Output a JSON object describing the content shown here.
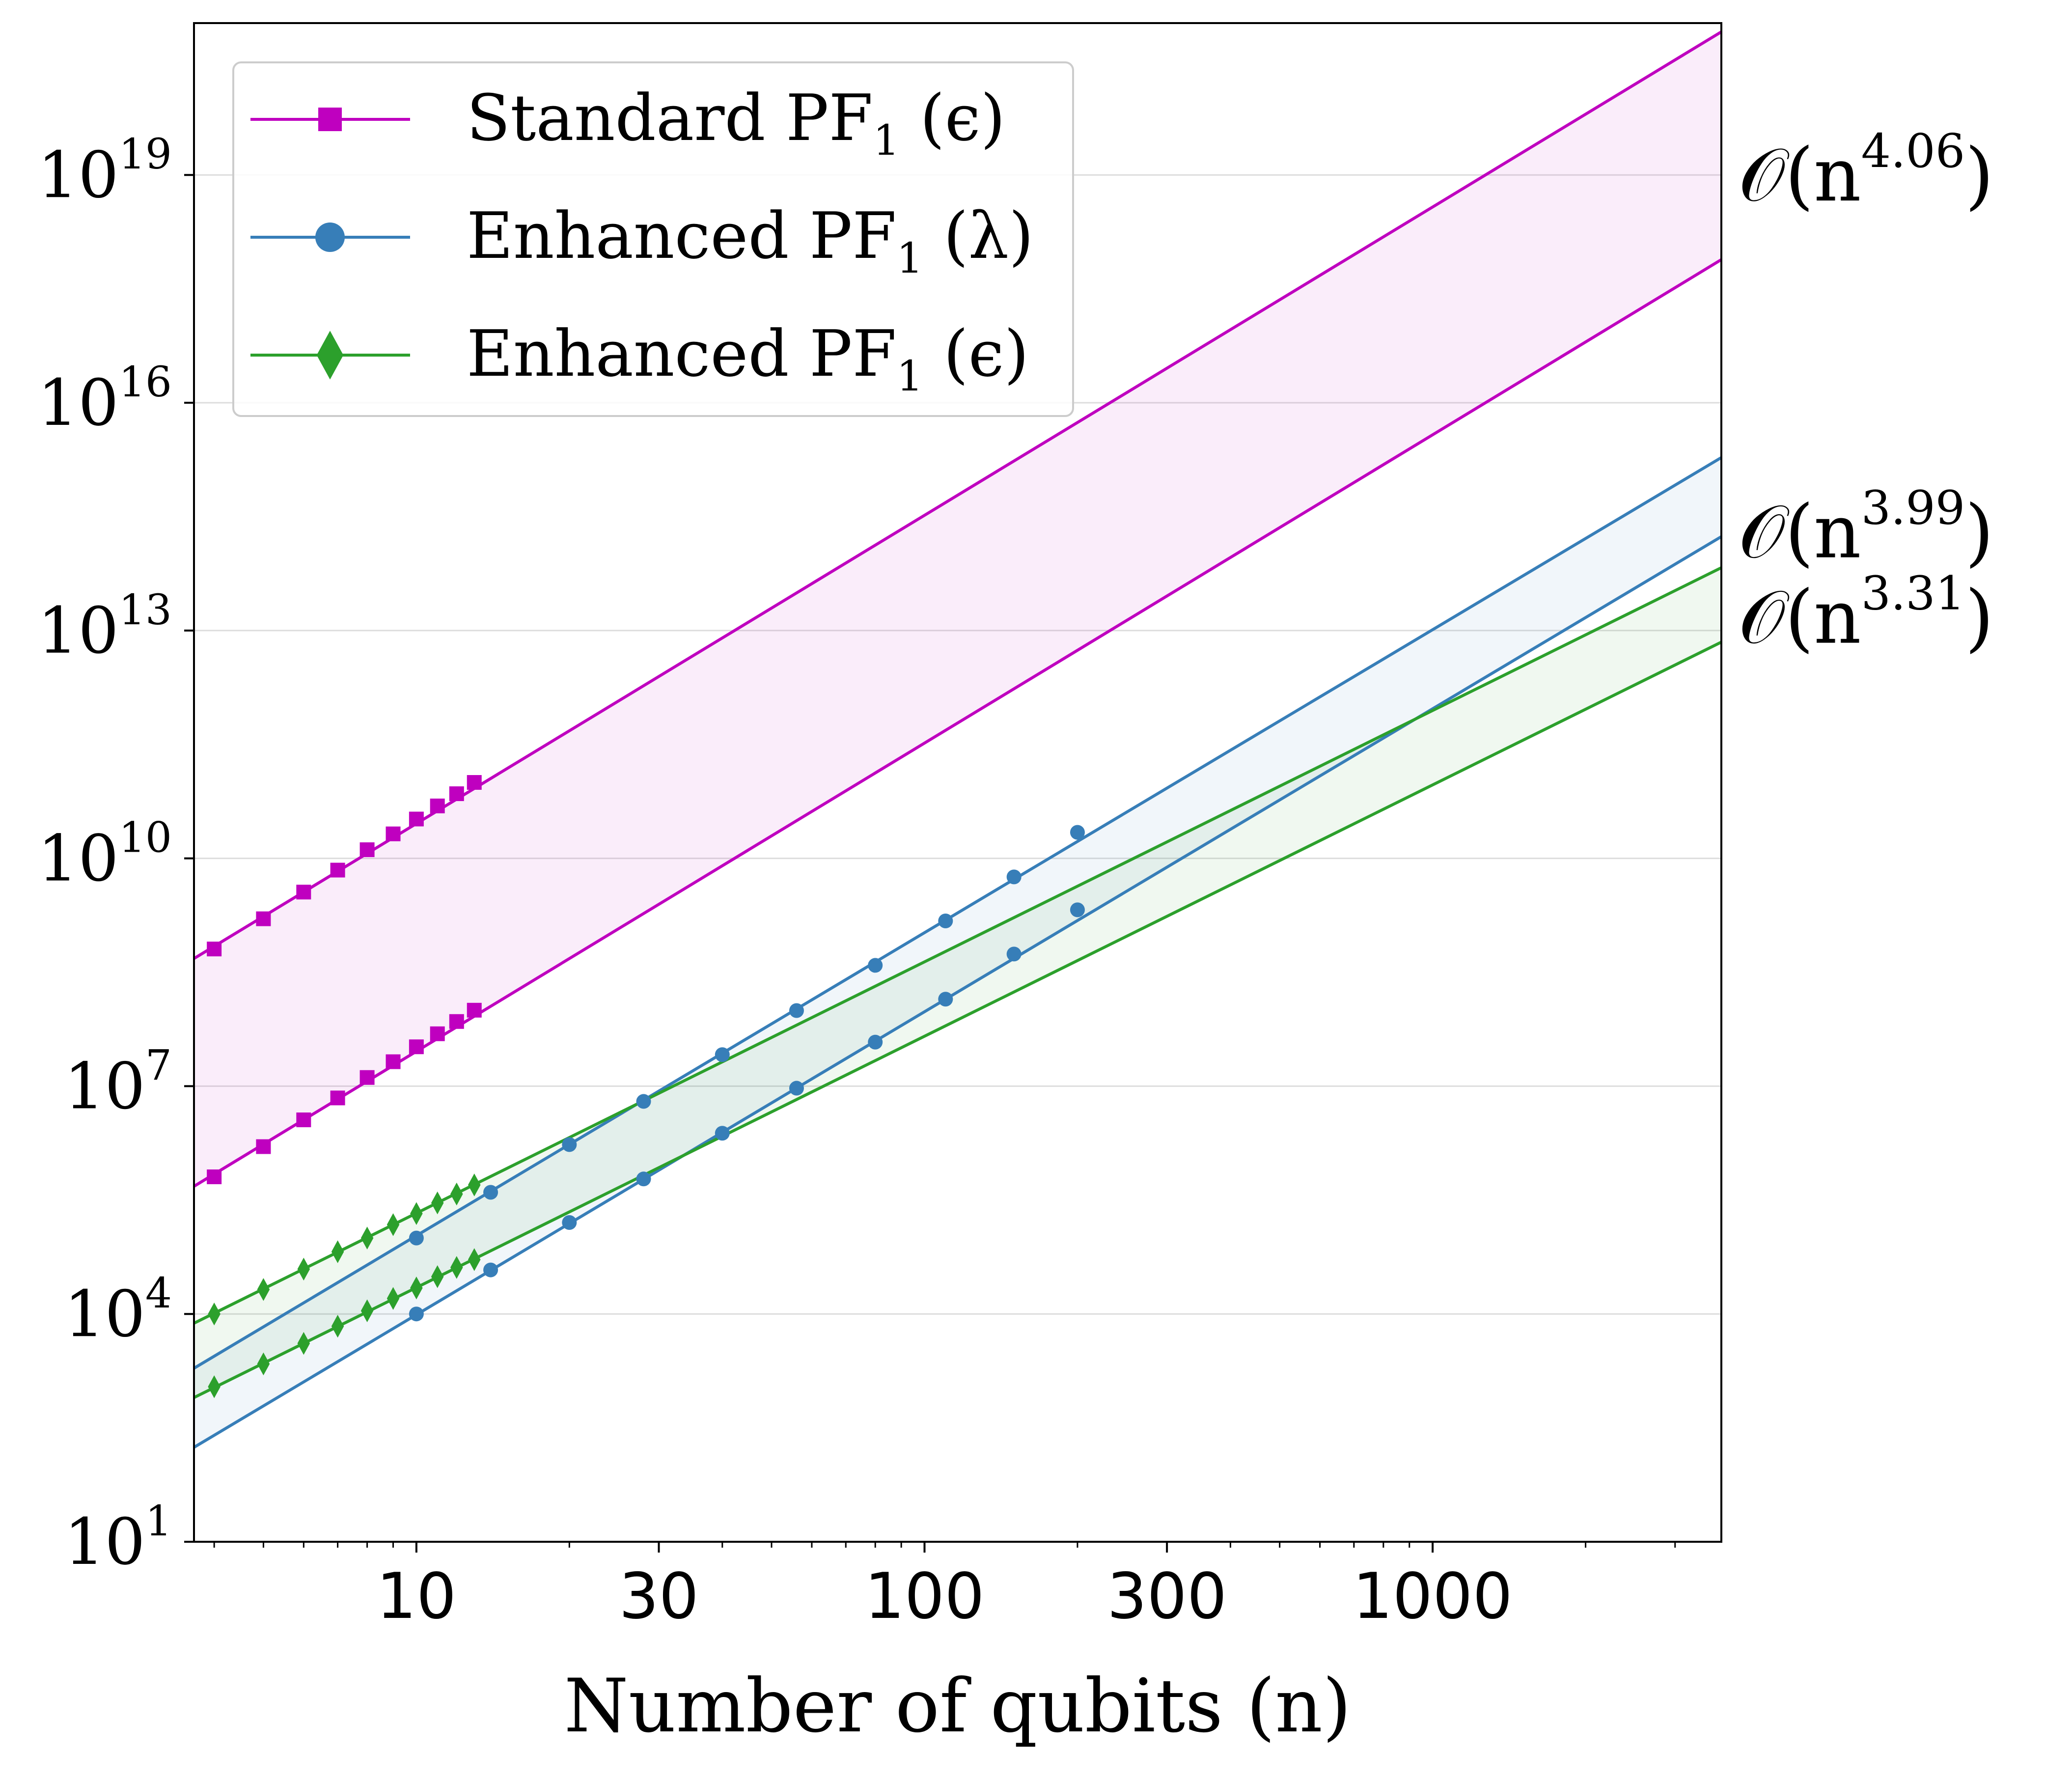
{
  "chart_data": {
    "type": "line",
    "xscale": "log",
    "yscale": "log",
    "xlim": [
      3.65,
      3700
    ],
    "ylim": [
      10,
      1e+21
    ],
    "xlabel": "Number of qubits (n)",
    "ylabel": "",
    "grid": "horizontal",
    "x_ticks": [
      {
        "value": 10,
        "label": "10"
      },
      {
        "value": 30,
        "label": "30"
      },
      {
        "value": 100,
        "label": "100"
      },
      {
        "value": 300,
        "label": "300"
      },
      {
        "value": 1000,
        "label": "1000"
      }
    ],
    "y_ticks": [
      {
        "value": 10,
        "base": "10",
        "exp": "1"
      },
      {
        "value": 10000,
        "base": "10",
        "exp": "4"
      },
      {
        "value": 10000000,
        "base": "10",
        "exp": "7"
      },
      {
        "value": 10000000000,
        "base": "10",
        "exp": "10"
      },
      {
        "value": 10000000000000,
        "base": "10",
        "exp": "13"
      },
      {
        "value": 1e+16,
        "base": "10",
        "exp": "16"
      },
      {
        "value": 1e+19,
        "base": "10",
        "exp": "19"
      }
    ],
    "legend": {
      "location": "top-left",
      "entries": [
        {
          "label": "Standard PF",
          "sub": "1",
          "param": "(ϵ)",
          "color": "#bf00bf",
          "marker": "square"
        },
        {
          "label": "Enhanced PF",
          "sub": "1",
          "param": "(λ)",
          "color": "#377eb8",
          "marker": "circle"
        },
        {
          "label": "Enhanced PF",
          "sub": "1",
          "param": "(ϵ)",
          "color": "#2ca02c",
          "marker": "diamond"
        }
      ]
    },
    "series": [
      {
        "name": "Standard PF1 (ϵ) upper",
        "color": "#bf00bf",
        "marker": "square",
        "fit_exponent": 4.06,
        "fit_prefactor": 2500000.0,
        "x": [
          4,
          5,
          6,
          7,
          8,
          9,
          10,
          11,
          12,
          13
        ],
        "y": [
          640000000.0,
          1600000000.0,
          3600000000.0,
          7000000000.0,
          13000000000.0,
          21000000000.0,
          33000000000.0,
          49000000000.0,
          71000000000.0,
          100000000000.0
        ]
      },
      {
        "name": "Standard PF1 (ϵ) lower",
        "color": "#bf00bf",
        "marker": "square",
        "fit_exponent": 4.06,
        "fit_prefactor": 2500.0,
        "x": [
          4,
          5,
          6,
          7,
          8,
          9,
          10,
          11,
          12,
          13
        ],
        "y": [
          640000.0,
          1600000.0,
          3600000.0,
          7000000.0,
          13000000.0,
          21000000.0,
          33000000.0,
          49000000.0,
          71000000.0,
          100000000.0
        ]
      },
      {
        "name": "Enhanced PF1 (λ) upper",
        "color": "#377eb8",
        "marker": "circle",
        "fit_exponent": 3.99,
        "fit_prefactor": 11,
        "x": [
          10,
          14,
          20,
          28,
          40,
          56,
          80,
          110,
          150,
          200
        ],
        "y": [
          100000.0,
          400000.0,
          1700000.0,
          6300000.0,
          26000000.0,
          99000000.0,
          390000000.0,
          1500000000.0,
          5700000000.0,
          22000000000.0
        ]
      },
      {
        "name": "Enhanced PF1 (λ) lower",
        "color": "#377eb8",
        "marker": "circle",
        "fit_exponent": 3.99,
        "fit_prefactor": 1.0,
        "x": [
          10,
          14,
          20,
          28,
          40,
          56,
          80,
          110,
          150,
          200
        ],
        "y": [
          10000.0,
          38000.0,
          160000.0,
          600000.0,
          2400000.0,
          9400000.0,
          38000000.0,
          140000000.0,
          550000000.0,
          2100000000.0
        ]
      },
      {
        "name": "Enhanced PF1 (ϵ) upper",
        "color": "#2ca02c",
        "marker": "diamond",
        "fit_exponent": 3.31,
        "fit_prefactor": 104,
        "x": [
          4,
          5,
          6,
          7,
          8,
          9,
          10,
          11,
          12,
          13
        ],
        "y": [
          10000.0,
          21000.0,
          39000.0,
          66000.0,
          100000.0,
          150000.0,
          210000.0,
          290000.0,
          380000.0,
          500000.0
        ]
      },
      {
        "name": "Enhanced PF1 (ϵ) lower",
        "color": "#2ca02c",
        "marker": "diamond",
        "fit_exponent": 3.31,
        "fit_prefactor": 10.9,
        "x": [
          4,
          5,
          6,
          7,
          8,
          9,
          10,
          11,
          12,
          13
        ],
        "y": [
          1100.0,
          2200.0,
          4100.0,
          6900.0,
          11000.0,
          16000.0,
          22000.0,
          31000.0,
          41000.0,
          52000.0
        ]
      }
    ],
    "annotations": [
      {
        "text": "𝒪(n",
        "exp": "4.06",
        "close": ")",
        "at_value": 1e+19
      },
      {
        "text": "𝒪(n",
        "exp": "3.99",
        "close": ")",
        "at_value": 200000000000000.0
      },
      {
        "text": "𝒪(n",
        "exp": "3.31",
        "close": ")",
        "at_value": 15000000000000.0
      }
    ]
  }
}
